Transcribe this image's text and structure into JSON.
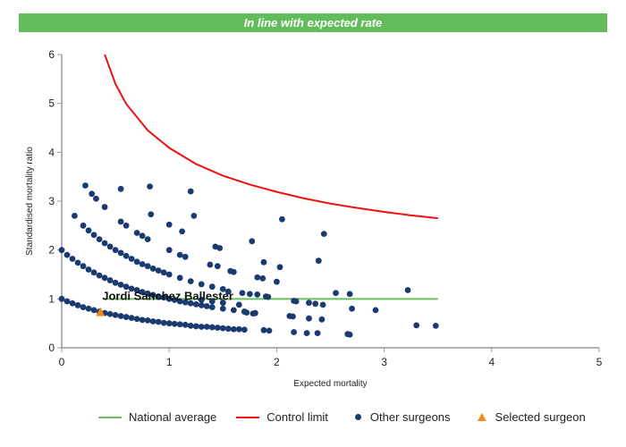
{
  "banner": {
    "text": "In line with expected rate",
    "color": "#63bc5c"
  },
  "chart_data": {
    "type": "scatter",
    "xlabel": "Expected mortality",
    "ylabel": "Standardised mortality ratio",
    "xlim": [
      0,
      5
    ],
    "ylim": [
      0,
      6
    ],
    "xticks": [
      "0",
      "1",
      "2",
      "3",
      "4",
      "5"
    ],
    "yticks": [
      "0",
      "1",
      "2",
      "3",
      "4",
      "5",
      "6"
    ],
    "grid": false,
    "legend_placement": "bottom",
    "national_average": {
      "name": "National average",
      "color": "#6abf5e",
      "y": 1,
      "x_range": [
        0.4,
        3.5
      ]
    },
    "control_limit": {
      "name": "Control limit",
      "color": "#ee1111",
      "points": [
        [
          0.4,
          6.0
        ],
        [
          0.5,
          5.4
        ],
        [
          0.6,
          4.99
        ],
        [
          0.8,
          4.45
        ],
        [
          1.0,
          4.09
        ],
        [
          1.25,
          3.76
        ],
        [
          1.5,
          3.52
        ],
        [
          1.75,
          3.34
        ],
        [
          2.0,
          3.19
        ],
        [
          2.25,
          3.06
        ],
        [
          2.5,
          2.95
        ],
        [
          2.75,
          2.86
        ],
        [
          3.0,
          2.78
        ],
        [
          3.25,
          2.71
        ],
        [
          3.5,
          2.65
        ]
      ]
    },
    "other_surgeons": {
      "name": "Other surgeons",
      "color": "#1a3a70",
      "points": [
        [
          0,
          1.0
        ],
        [
          0.05,
          0.95
        ],
        [
          0.1,
          0.91
        ],
        [
          0.15,
          0.87
        ],
        [
          0.2,
          0.83
        ],
        [
          0.25,
          0.8
        ],
        [
          0.3,
          0.77
        ],
        [
          0.35,
          0.74
        ],
        [
          0.4,
          0.71
        ],
        [
          0.45,
          0.69
        ],
        [
          0.5,
          0.67
        ],
        [
          0.55,
          0.65
        ],
        [
          0.6,
          0.63
        ],
        [
          0.65,
          0.61
        ],
        [
          0.7,
          0.59
        ],
        [
          0.75,
          0.57
        ],
        [
          0.8,
          0.56
        ],
        [
          0.85,
          0.54
        ],
        [
          0.9,
          0.53
        ],
        [
          0.95,
          0.51
        ],
        [
          1.0,
          0.5
        ],
        [
          1.05,
          0.49
        ],
        [
          1.1,
          0.48
        ],
        [
          1.15,
          0.47
        ],
        [
          1.2,
          0.45
        ],
        [
          1.25,
          0.44
        ],
        [
          1.3,
          0.43
        ],
        [
          1.35,
          0.43
        ],
        [
          1.4,
          0.42
        ],
        [
          1.45,
          0.41
        ],
        [
          1.5,
          0.4
        ],
        [
          1.55,
          0.39
        ],
        [
          1.6,
          0.38
        ],
        [
          1.65,
          0.38
        ],
        [
          1.7,
          0.37
        ],
        [
          0,
          2.0
        ],
        [
          0.05,
          1.9
        ],
        [
          0.1,
          1.82
        ],
        [
          0.15,
          1.74
        ],
        [
          0.2,
          1.67
        ],
        [
          0.25,
          1.6
        ],
        [
          0.3,
          1.54
        ],
        [
          0.35,
          1.48
        ],
        [
          0.4,
          1.43
        ],
        [
          0.45,
          1.38
        ],
        [
          0.5,
          1.33
        ],
        [
          0.55,
          1.29
        ],
        [
          0.6,
          1.25
        ],
        [
          0.65,
          1.21
        ],
        [
          0.7,
          1.18
        ],
        [
          0.75,
          1.14
        ],
        [
          0.8,
          1.11
        ],
        [
          0.85,
          1.08
        ],
        [
          0.9,
          1.05
        ],
        [
          0.95,
          1.03
        ],
        [
          1.0,
          1.0
        ],
        [
          1.05,
          0.98
        ],
        [
          1.1,
          0.95
        ],
        [
          1.15,
          0.93
        ],
        [
          1.2,
          0.91
        ],
        [
          1.25,
          0.89
        ],
        [
          1.3,
          0.87
        ],
        [
          1.35,
          0.85
        ],
        [
          1.4,
          0.83
        ],
        [
          1.5,
          0.8
        ],
        [
          1.6,
          0.77
        ],
        [
          1.7,
          0.74
        ],
        [
          1.8,
          0.71
        ],
        [
          0.2,
          2.5
        ],
        [
          0.25,
          2.4
        ],
        [
          0.3,
          2.31
        ],
        [
          0.35,
          2.22
        ],
        [
          0.4,
          2.14
        ],
        [
          0.45,
          2.07
        ],
        [
          0.5,
          2.0
        ],
        [
          0.55,
          1.94
        ],
        [
          0.6,
          1.88
        ],
        [
          0.65,
          1.82
        ],
        [
          0.7,
          1.76
        ],
        [
          0.75,
          1.71
        ],
        [
          0.8,
          1.67
        ],
        [
          0.85,
          1.62
        ],
        [
          0.9,
          1.58
        ],
        [
          0.95,
          1.54
        ],
        [
          1.0,
          1.5
        ],
        [
          1.1,
          1.43
        ],
        [
          1.2,
          1.36
        ],
        [
          1.3,
          1.3
        ],
        [
          1.4,
          1.25
        ],
        [
          1.5,
          1.2
        ],
        [
          0.55,
          2.58
        ],
        [
          0.6,
          2.5
        ],
        [
          0.7,
          2.35
        ],
        [
          0.75,
          2.29
        ],
        [
          0.8,
          2.22
        ],
        [
          1.0,
          2.0
        ],
        [
          1.1,
          1.9
        ],
        [
          1.15,
          1.86
        ],
        [
          0.12,
          2.7
        ],
        [
          0.22,
          3.32
        ],
        [
          0.28,
          3.15
        ],
        [
          0.32,
          3.05
        ],
        [
          0.4,
          2.88
        ],
        [
          0.55,
          3.25
        ],
        [
          0.82,
          3.3
        ],
        [
          0.83,
          2.73
        ],
        [
          1.2,
          3.2
        ],
        [
          1.23,
          2.7
        ],
        [
          1.0,
          2.52
        ],
        [
          1.12,
          2.38
        ],
        [
          1.43,
          2.07
        ],
        [
          1.47,
          2.04
        ],
        [
          1.77,
          2.18
        ],
        [
          2.05,
          2.63
        ],
        [
          2.44,
          2.33
        ],
        [
          2.39,
          1.78
        ],
        [
          1.88,
          1.75
        ],
        [
          2.03,
          1.65
        ],
        [
          1.82,
          1.44
        ],
        [
          1.87,
          1.42
        ],
        [
          2.55,
          1.12
        ],
        [
          2.68,
          1.1
        ],
        [
          3.22,
          1.18
        ],
        [
          2.16,
          0.96
        ],
        [
          2.18,
          0.95
        ],
        [
          2.3,
          0.92
        ],
        [
          2.36,
          0.9
        ],
        [
          2.43,
          0.88
        ],
        [
          2.7,
          0.8
        ],
        [
          2.92,
          0.77
        ],
        [
          2.12,
          0.65
        ],
        [
          2.15,
          0.64
        ],
        [
          2.3,
          0.6
        ],
        [
          2.42,
          0.58
        ],
        [
          1.88,
          0.36
        ],
        [
          1.93,
          0.35
        ],
        [
          2.16,
          0.32
        ],
        [
          2.28,
          0.3
        ],
        [
          2.38,
          0.3
        ],
        [
          2.66,
          0.28
        ],
        [
          2.68,
          0.27
        ],
        [
          3.3,
          0.46
        ],
        [
          3.48,
          0.45
        ],
        [
          2.0,
          1.35
        ],
        [
          1.82,
          1.09
        ],
        [
          1.9,
          1.05
        ],
        [
          1.92,
          1.04
        ],
        [
          1.75,
          1.1
        ],
        [
          1.68,
          1.12
        ],
        [
          1.55,
          1.15
        ],
        [
          1.6,
          1.55
        ],
        [
          1.57,
          1.57
        ],
        [
          1.38,
          1.7
        ],
        [
          1.45,
          1.67
        ],
        [
          1.3,
          0.98
        ],
        [
          1.4,
          0.95
        ],
        [
          1.5,
          0.92
        ],
        [
          1.65,
          0.88
        ],
        [
          1.72,
          0.72
        ],
        [
          1.78,
          0.7
        ]
      ]
    },
    "selected_surgeon": {
      "name": "Selected surgeon",
      "label": "Jordi Sanchez Ballester",
      "color": "#f08a18",
      "x": 0.36,
      "y": 0.72
    }
  }
}
